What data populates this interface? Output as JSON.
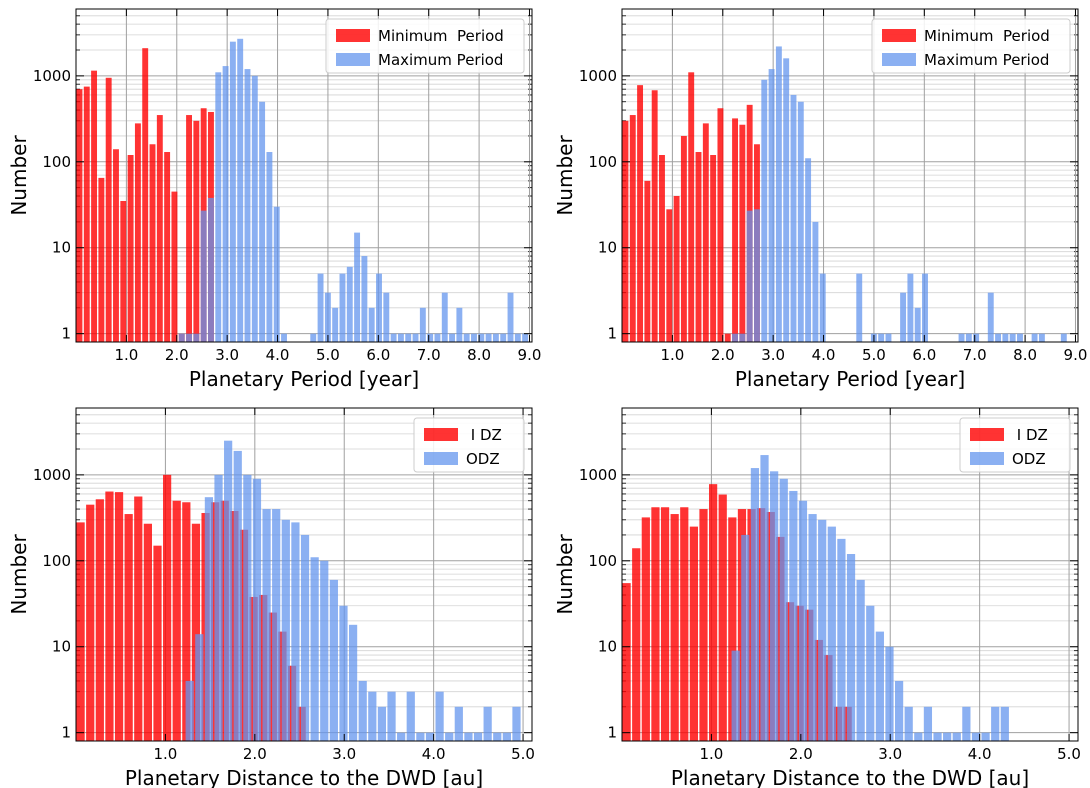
{
  "colors": {
    "series_a": "#ff0000",
    "series_b": "#6495ed"
  },
  "chart_data": [
    {
      "type": "bar",
      "xlabel": "Planetary Period [year]",
      "ylabel": "Number",
      "xlim": [
        0.0,
        9.05
      ],
      "ylim": [
        0.8,
        6000
      ],
      "yscale": "log",
      "grid": true,
      "legend_position": "top-right",
      "xticks": [
        1.0,
        2.0,
        3.0,
        4.0,
        5.0,
        6.0,
        7.0,
        8.0,
        9.0
      ],
      "xtick_labels": [
        "1.0",
        "2.0",
        "3.0",
        "4.0",
        "5.0",
        "6.0",
        "7.0",
        "8.0",
        "9.0"
      ],
      "yticks": [
        1,
        10,
        100,
        1000
      ],
      "ytick_labels": [
        "1",
        "10",
        "100",
        "1000"
      ],
      "bin_width": 0.145,
      "series": [
        {
          "name": "Minimum  Period",
          "x": [
            0.0,
            0.145,
            0.29,
            0.435,
            0.58,
            0.725,
            0.87,
            1.015,
            1.16,
            1.305,
            1.45,
            1.595,
            1.74,
            1.885,
            2.03,
            2.175,
            2.32,
            2.465,
            2.61
          ],
          "values": [
            700,
            750,
            1150,
            65,
            950,
            140,
            35,
            120,
            280,
            2100,
            160,
            350,
            130,
            45,
            1,
            350,
            300,
            420,
            380
          ]
        },
        {
          "name": "Maximum Period",
          "x": [
            2.03,
            2.175,
            2.32,
            2.465,
            2.61,
            2.755,
            2.9,
            3.045,
            3.19,
            3.335,
            3.48,
            3.625,
            3.77,
            3.915,
            4.06,
            4.64,
            4.785,
            4.93,
            5.075,
            5.22,
            5.365,
            5.51,
            5.655,
            5.8,
            5.945,
            6.09,
            6.235,
            6.38,
            6.525,
            6.67,
            6.815,
            6.96,
            7.105,
            7.25,
            7.395,
            7.54,
            7.685,
            7.83,
            7.975,
            8.12,
            8.265,
            8.41,
            8.555,
            8.7,
            8.845
          ],
          "values": [
            1,
            1,
            1,
            27,
            38,
            1100,
            1300,
            2500,
            2700,
            1200,
            1000,
            500,
            130,
            30,
            1,
            1,
            5,
            3,
            2,
            5,
            6,
            15,
            8,
            2,
            5,
            3,
            1,
            1,
            1,
            1,
            2,
            1,
            1,
            3,
            1,
            2,
            1,
            1,
            1,
            1,
            1,
            1,
            3,
            1,
            1
          ]
        }
      ]
    },
    {
      "type": "bar",
      "xlabel": "Planetary Period [year]",
      "ylabel": "Number",
      "xlim": [
        0.0,
        9.05
      ],
      "ylim": [
        0.8,
        6000
      ],
      "yscale": "log",
      "grid": true,
      "legend_position": "top-right",
      "xticks": [
        1.0,
        2.0,
        3.0,
        4.0,
        5.0,
        6.0,
        7.0,
        8.0,
        9.0
      ],
      "xtick_labels": [
        "1.0",
        "2.0",
        "3.0",
        "4.0",
        "5.0",
        "6.0",
        "7.0",
        "8.0",
        "9.0"
      ],
      "yticks": [
        1,
        10,
        100,
        1000
      ],
      "ytick_labels": [
        "1",
        "10",
        "100",
        "1000"
      ],
      "bin_width": 0.145,
      "series": [
        {
          "name": "Minimum  Period",
          "x": [
            0.0,
            0.145,
            0.29,
            0.435,
            0.58,
            0.725,
            0.87,
            1.015,
            1.16,
            1.305,
            1.45,
            1.595,
            1.74,
            1.885,
            2.03,
            2.175,
            2.32,
            2.465,
            2.61
          ],
          "values": [
            300,
            350,
            780,
            60,
            680,
            120,
            28,
            40,
            200,
            1100,
            130,
            280,
            120,
            420,
            1,
            320,
            270,
            460,
            160
          ]
        },
        {
          "name": "Maximum Period",
          "x": [
            2.175,
            2.32,
            2.465,
            2.61,
            2.755,
            2.9,
            3.045,
            3.19,
            3.335,
            3.48,
            3.625,
            3.77,
            3.915,
            4.64,
            4.93,
            5.075,
            5.22,
            5.51,
            5.655,
            5.8,
            5.945,
            6.67,
            6.815,
            6.96,
            7.25,
            7.395,
            7.54,
            7.685,
            7.83,
            8.12,
            8.265,
            8.7
          ],
          "values": [
            1,
            1,
            27,
            28,
            900,
            1200,
            2200,
            1600,
            600,
            500,
            110,
            20,
            5,
            5,
            1,
            1,
            1,
            3,
            5,
            2,
            5,
            1,
            1,
            1,
            3,
            1,
            1,
            1,
            1,
            1,
            1,
            1
          ]
        }
      ]
    },
    {
      "type": "bar",
      "xlabel": "Planetary Distance to the DWD [au]",
      "ylabel": "Number",
      "xlim": [
        0.0,
        5.1
      ],
      "ylim": [
        0.8,
        6000
      ],
      "yscale": "log",
      "grid": true,
      "legend_position": "top-right",
      "xticks": [
        1.0,
        2.0,
        3.0,
        4.0,
        5.0
      ],
      "xtick_labels": [
        "1.0",
        "2.0",
        "3.0",
        "4.0",
        "5.0"
      ],
      "yticks": [
        1,
        10,
        100,
        1000
      ],
      "ytick_labels": [
        "1",
        "10",
        "100",
        "1000"
      ],
      "bin_width": 0.1075,
      "series": [
        {
          "name": " I DZ",
          "x": [
            0.0,
            0.1075,
            0.215,
            0.3225,
            0.43,
            0.5375,
            0.645,
            0.7525,
            0.86,
            0.9675,
            1.075,
            1.1825,
            1.29,
            1.3975,
            1.505,
            1.6125,
            1.72,
            1.8275,
            1.935,
            2.0425,
            2.15,
            2.2575,
            2.365,
            2.4725
          ],
          "values": [
            280,
            450,
            520,
            640,
            630,
            350,
            560,
            270,
            150,
            1000,
            500,
            480,
            270,
            360,
            480,
            500,
            380,
            230,
            38,
            40,
            25,
            15,
            6,
            2
          ]
        },
        {
          "name": "ODZ",
          "x": [
            1.22,
            1.3275,
            1.435,
            1.5425,
            1.65,
            1.7575,
            1.865,
            1.9725,
            2.08,
            2.1875,
            2.295,
            2.4025,
            2.51,
            2.6175,
            2.725,
            2.8325,
            2.94,
            3.0475,
            3.155,
            3.2625,
            3.37,
            3.4775,
            3.585,
            3.6925,
            3.8,
            3.9075,
            4.015,
            4.1225,
            4.23,
            4.3375,
            4.445,
            4.5525,
            4.66,
            4.7675,
            4.875
          ],
          "values": [
            4,
            14,
            550,
            1000,
            2500,
            1900,
            1000,
            900,
            400,
            400,
            300,
            280,
            200,
            110,
            100,
            60,
            30,
            18,
            4,
            3,
            2,
            3,
            1,
            3,
            1,
            1,
            3,
            1,
            2,
            1,
            1,
            2,
            1,
            1,
            2
          ]
        }
      ]
    },
    {
      "type": "bar",
      "xlabel": "Planetary Distance to the DWD [au]",
      "ylabel": "Number",
      "xlim": [
        0.0,
        5.1
      ],
      "ylim": [
        0.8,
        6000
      ],
      "yscale": "log",
      "grid": true,
      "legend_position": "top-right",
      "xticks": [
        1.0,
        2.0,
        3.0,
        4.0,
        5.0
      ],
      "xtick_labels": [
        "1.0",
        "2.0",
        "3.0",
        "4.0",
        "5.0"
      ],
      "yticks": [
        1,
        10,
        100,
        1000
      ],
      "ytick_labels": [
        "1",
        "10",
        "100",
        "1000"
      ],
      "bin_width": 0.1075,
      "series": [
        {
          "name": " I DZ",
          "x": [
            0.0,
            0.1075,
            0.215,
            0.3225,
            0.43,
            0.5375,
            0.645,
            0.7525,
            0.86,
            0.9675,
            1.075,
            1.1825,
            1.29,
            1.3975,
            1.505,
            1.6125,
            1.72,
            1.8275,
            1.935,
            2.0425,
            2.15,
            2.2575,
            2.365,
            2.4725
          ],
          "values": [
            55,
            140,
            320,
            420,
            420,
            350,
            420,
            250,
            400,
            780,
            590,
            320,
            400,
            400,
            410,
            370,
            190,
            33,
            30,
            27,
            12,
            8,
            2,
            2
          ]
        },
        {
          "name": "ODZ",
          "x": [
            1.22,
            1.3275,
            1.435,
            1.5425,
            1.65,
            1.7575,
            1.865,
            1.9725,
            2.08,
            2.1875,
            2.295,
            2.4025,
            2.51,
            2.6175,
            2.725,
            2.8325,
            2.94,
            3.0475,
            3.155,
            3.2625,
            3.37,
            3.4775,
            3.585,
            3.6925,
            3.8,
            3.9075,
            4.015,
            4.1225,
            4.23
          ],
          "values": [
            9,
            200,
            1200,
            1700,
            1100,
            900,
            650,
            500,
            350,
            300,
            250,
            180,
            120,
            60,
            30,
            15,
            10,
            4,
            2,
            1,
            2,
            1,
            1,
            1,
            2,
            1,
            1,
            2,
            2
          ]
        }
      ]
    }
  ]
}
